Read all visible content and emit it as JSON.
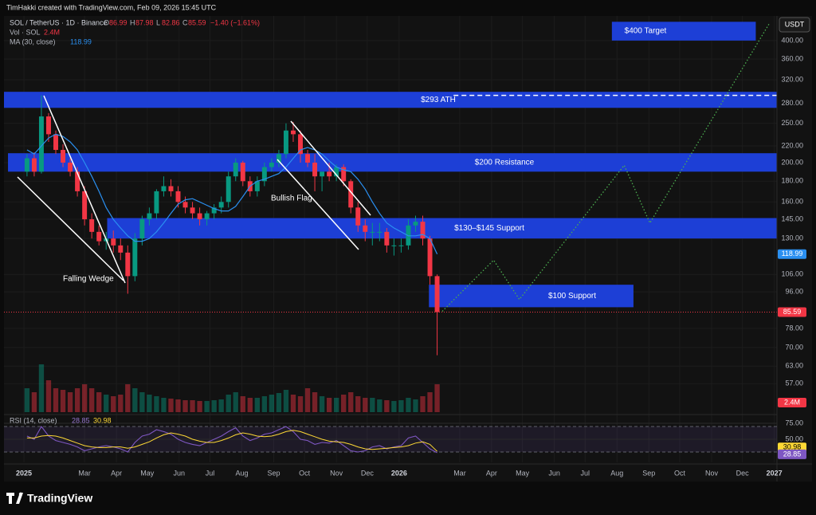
{
  "chart_data": {
    "type": "candlestick",
    "header": "TimHakki created with TradingView.com, Feb 09, 2026 15:45 UTC",
    "symbol": "SOL / TetherUS · 1D · Binance",
    "ohlc_labels": [
      "O",
      "H",
      "L",
      "C"
    ],
    "ohlc": [
      86.99,
      87.98,
      82.86,
      85.59
    ],
    "change": "−1.40 (−1.61%)",
    "volume_title": "Vol · SOL",
    "volume_label": "2.4M",
    "ma_title": "MA (30, close)",
    "currency": "USDT",
    "rsi_title": "RSI (14, close)",
    "logo": "TradingView",
    "log_scale": true,
    "grid": true,
    "up_color": "#089981",
    "down_color": "#f23645",
    "ma_color": "#2a8ff0",
    "rsi_color": "#7e57c2",
    "rsi_ma_color": "#fdd835",
    "zone_color": "#1d3fd6",
    "projection_color": "#4caf50",
    "xlim": [
      -19.4,
      732.6
    ],
    "xticks": [
      {
        "value": 0,
        "label": "2025"
      },
      {
        "value": 59,
        "label": "Mar"
      },
      {
        "value": 90,
        "label": "Apr"
      },
      {
        "value": 120,
        "label": "May"
      },
      {
        "value": 151,
        "label": "Jun"
      },
      {
        "value": 181,
        "label": "Jul"
      },
      {
        "value": 212,
        "label": "Aug"
      },
      {
        "value": 243,
        "label": "Sep"
      },
      {
        "value": 273,
        "label": "Oct"
      },
      {
        "value": 304,
        "label": "Nov"
      },
      {
        "value": 334,
        "label": "Dec"
      },
      {
        "value": 365,
        "label": "2026"
      },
      {
        "value": 424,
        "label": "Mar"
      },
      {
        "value": 455,
        "label": "Apr"
      },
      {
        "value": 485,
        "label": "May"
      },
      {
        "value": 516,
        "label": "Jun"
      },
      {
        "value": 546,
        "label": "Jul"
      },
      {
        "value": 577,
        "label": "Aug"
      },
      {
        "value": 608,
        "label": "Sep"
      },
      {
        "value": 638,
        "label": "Oct"
      },
      {
        "value": 669,
        "label": "Nov"
      },
      {
        "value": 699,
        "label": "Dec"
      },
      {
        "value": 730,
        "label": "2027"
      }
    ],
    "ylim": [
      48.5,
      460
    ],
    "yticks": [
      {
        "value": 400,
        "label": "400.00"
      },
      {
        "value": 360,
        "label": "360.00"
      },
      {
        "value": 320,
        "label": "320.00"
      },
      {
        "value": 280,
        "label": "280.00"
      },
      {
        "value": 250,
        "label": "250.00"
      },
      {
        "value": 220,
        "label": "220.00"
      },
      {
        "value": 200,
        "label": "200.00"
      },
      {
        "value": 180,
        "label": "180.00"
      },
      {
        "value": 160,
        "label": "160.00"
      },
      {
        "value": 145,
        "label": "145.00"
      },
      {
        "value": 130,
        "label": "130.00"
      },
      {
        "value": 106,
        "label": "106.00"
      },
      {
        "value": 96,
        "label": "96.00"
      },
      {
        "value": 78,
        "label": "78.00"
      },
      {
        "value": 70,
        "label": "70.00"
      },
      {
        "value": 63,
        "label": "63.00"
      },
      {
        "value": 57,
        "label": "57.00"
      }
    ],
    "x": [
      3,
      10,
      17,
      24,
      31,
      38,
      45,
      52,
      59,
      66,
      73,
      80,
      87,
      94,
      101,
      108,
      115,
      122,
      129,
      136,
      143,
      150,
      157,
      164,
      171,
      178,
      185,
      192,
      199,
      206,
      213,
      220,
      227,
      234,
      241,
      248,
      255,
      262,
      269,
      276,
      283,
      290,
      297,
      304,
      311,
      318,
      325,
      332,
      339,
      346,
      353,
      360,
      367,
      374,
      381,
      388,
      395,
      402
    ],
    "open": [
      190,
      205,
      190,
      260,
      235,
      215,
      200,
      190,
      170,
      145,
      135,
      128,
      130,
      125,
      120,
      105,
      130,
      145,
      150,
      170,
      175,
      170,
      160,
      155,
      150,
      145,
      150,
      155,
      160,
      185,
      200,
      180,
      170,
      180,
      195,
      200,
      210,
      240,
      235,
      210,
      200,
      185,
      190,
      185,
      195,
      180,
      155,
      140,
      135,
      135,
      135,
      125,
      125,
      125,
      140,
      143,
      130,
      105
    ],
    "high": [
      210,
      212,
      293,
      265,
      240,
      222,
      205,
      195,
      175,
      150,
      140,
      135,
      136,
      130,
      125,
      134,
      148,
      155,
      172,
      185,
      182,
      175,
      165,
      160,
      155,
      152,
      158,
      165,
      190,
      205,
      202,
      185,
      185,
      200,
      205,
      215,
      250,
      252,
      240,
      215,
      210,
      190,
      200,
      198,
      198,
      182,
      160,
      145,
      142,
      142,
      138,
      130,
      130,
      145,
      148,
      148,
      132,
      106
    ],
    "low": [
      185,
      185,
      188,
      225,
      210,
      195,
      185,
      165,
      140,
      130,
      125,
      122,
      120,
      115,
      95,
      102,
      125,
      140,
      145,
      165,
      165,
      155,
      150,
      145,
      140,
      140,
      145,
      150,
      155,
      180,
      175,
      165,
      165,
      175,
      190,
      195,
      205,
      225,
      200,
      195,
      170,
      170,
      180,
      180,
      175,
      150,
      135,
      128,
      125,
      128,
      120,
      118,
      120,
      122,
      135,
      125,
      100,
      67
    ],
    "close": [
      205,
      190,
      260,
      235,
      215,
      200,
      190,
      170,
      145,
      135,
      128,
      130,
      125,
      120,
      105,
      130,
      145,
      150,
      170,
      175,
      170,
      160,
      155,
      150,
      145,
      150,
      155,
      160,
      185,
      200,
      180,
      170,
      180,
      195,
      200,
      210,
      240,
      235,
      210,
      200,
      185,
      190,
      185,
      195,
      180,
      155,
      140,
      135,
      135,
      135,
      125,
      125,
      125,
      140,
      143,
      130,
      105,
      85.59
    ],
    "volume": [
      30,
      25,
      60,
      40,
      30,
      28,
      25,
      30,
      35,
      30,
      25,
      22,
      20,
      22,
      35,
      30,
      25,
      22,
      20,
      18,
      17,
      16,
      15,
      15,
      14,
      14,
      15,
      16,
      22,
      25,
      20,
      18,
      18,
      20,
      22,
      24,
      28,
      22,
      20,
      30,
      25,
      20,
      18,
      18,
      22,
      25,
      20,
      18,
      18,
      16,
      15,
      14,
      15,
      18,
      16,
      20,
      25,
      35
    ],
    "volume_lim": [
      0,
      100
    ],
    "ma_values": [
      215,
      210,
      220,
      230,
      235,
      232,
      225,
      215,
      200,
      185,
      170,
      155,
      145,
      138,
      132,
      128,
      128,
      130,
      135,
      142,
      150,
      158,
      162,
      163,
      160,
      157,
      154,
      152,
      152,
      156,
      165,
      175,
      180,
      182,
      185,
      188,
      195,
      205,
      215,
      218,
      215,
      210,
      202,
      195,
      192,
      190,
      182,
      172,
      160,
      150,
      142,
      138,
      135,
      132,
      132,
      133,
      130,
      118.99
    ],
    "rsi": [
      55,
      50,
      70,
      55,
      48,
      45,
      42,
      38,
      32,
      35,
      38,
      40,
      38,
      35,
      30,
      45,
      55,
      58,
      65,
      62,
      58,
      50,
      45,
      42,
      40,
      45,
      50,
      55,
      62,
      68,
      55,
      48,
      52,
      58,
      60,
      65,
      70,
      62,
      50,
      48,
      42,
      45,
      44,
      48,
      40,
      32,
      30,
      32,
      38,
      40,
      35,
      38,
      40,
      52,
      55,
      45,
      35,
      28.85
    ],
    "rsi_ma": [
      52,
      52,
      55,
      56,
      55,
      52,
      48,
      44,
      40,
      38,
      37,
      37,
      38,
      38,
      36,
      38,
      42,
      46,
      52,
      57,
      60,
      58,
      55,
      50,
      47,
      45,
      45,
      48,
      52,
      57,
      60,
      58,
      55,
      54,
      55,
      58,
      62,
      64,
      62,
      58,
      54,
      50,
      47,
      46,
      45,
      42,
      38,
      35,
      34,
      35,
      36,
      37,
      38,
      40,
      44,
      46,
      42,
      30.98
    ],
    "rsi_lim": [
      13.75,
      82.5
    ],
    "rsi_ticks": [
      {
        "value": 75,
        "label": "75.00"
      },
      {
        "value": 50,
        "label": "50.00"
      }
    ],
    "rsi_band": [
      30,
      70
    ],
    "zones": [
      {
        "label": "$400 Target",
        "low": 400,
        "high": 445,
        "x0": 572,
        "x1": 712
      },
      {
        "label": "$293 ATH",
        "low": 273,
        "high": 299,
        "x0": -19.4,
        "x1": 732.6
      },
      {
        "label": "$200 Resistance",
        "low": 190,
        "high": 211,
        "x0": -15.5,
        "x1": 732.6
      },
      {
        "label": "$130–$145 Support",
        "low": 130,
        "high": 146,
        "x0": 81,
        "x1": 732.6
      },
      {
        "label": "$100 Support",
        "low": 88,
        "high": 100,
        "x0": 394,
        "x1": 593
      }
    ],
    "ath_line": {
      "value": 293,
      "x0": 418
    },
    "projection": {
      "x": [
        407,
        457,
        482,
        584,
        609,
        725
      ],
      "values": [
        86,
        115,
        92,
        197,
        142,
        440
      ]
    },
    "patterns": [
      "Falling Wedge",
      "Bullish Flag"
    ]
  }
}
